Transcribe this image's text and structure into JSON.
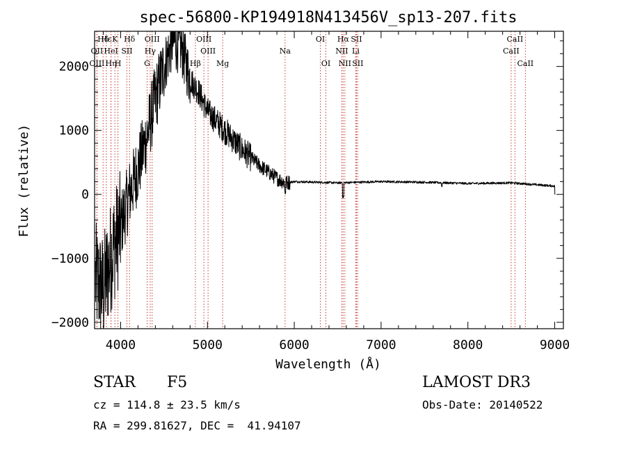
{
  "colors": {
    "line_marker": "#c0392b",
    "spectrum": "#000000",
    "axes": "#000000"
  },
  "chart_data": {
    "type": "line",
    "title": "spec-56800-KP194918N413456V_sp13-207.fits",
    "xlabel": "Wavelength (Å)",
    "ylabel": "Flux (relative)",
    "xlim": [
      3700,
      9100
    ],
    "ylim": [
      -2100,
      2550
    ],
    "xticks": [
      4000,
      5000,
      6000,
      7000,
      8000,
      9000
    ],
    "xtick_labels": [
      "4000",
      "5000",
      "6000",
      "7000",
      "8000",
      "9000"
    ],
    "yticks": [
      -2000,
      -1000,
      0,
      1000,
      2000
    ],
    "ytick_labels": [
      "−2000",
      "−1000",
      "0",
      "1000",
      "2000"
    ],
    "spectrum_envelope": {
      "x": [
        3700,
        3800,
        3900,
        4000,
        4100,
        4200,
        4300,
        4400,
        4500,
        4600,
        4700,
        4800,
        4900,
        5000,
        5200,
        5400,
        5600,
        5800,
        5900,
        6000,
        6500,
        7000,
        7500,
        8000,
        8500,
        9000,
        9010
      ],
      "y": [
        -1300,
        -1500,
        -900,
        -500,
        0,
        400,
        900,
        1500,
        2000,
        2400,
        2300,
        1800,
        1600,
        1300,
        1000,
        700,
        450,
        250,
        180,
        200,
        180,
        200,
        190,
        170,
        180,
        130,
        0
      ]
    },
    "emission_lines": [
      {
        "label": "Hδ",
        "wavelength": 3798,
        "row": 0
      },
      {
        "label": "OII",
        "wavelength": 3727,
        "row": 1
      },
      {
        "label": "OIII",
        "wavelength": 3727,
        "row": 2
      },
      {
        "label": "Hε",
        "wavelength": 3835,
        "row": 0
      },
      {
        "label": "HeI",
        "wavelength": 3889,
        "row": 1
      },
      {
        "label": "Hη",
        "wavelength": 3889,
        "row": 2
      },
      {
        "label": "K",
        "wavelength": 3934,
        "row": 0
      },
      {
        "label": "SII",
        "wavelength": 4072,
        "row": 1
      },
      {
        "label": "H",
        "wavelength": 3969,
        "row": 2
      },
      {
        "label": "Hδ",
        "wavelength": 4102,
        "row": 0
      },
      {
        "label": "OIII",
        "wavelength": 4363,
        "row": 0
      },
      {
        "label": "Hγ",
        "wavelength": 4340,
        "row": 1
      },
      {
        "label": "G",
        "wavelength": 4305,
        "row": 2
      },
      {
        "label": "Hβ",
        "wavelength": 4861,
        "row": 2
      },
      {
        "label": "OIII",
        "wavelength": 4959,
        "row": 0
      },
      {
        "label": "OIII",
        "wavelength": 5007,
        "row": 1
      },
      {
        "label": "Mg",
        "wavelength": 5175,
        "row": 2
      },
      {
        "label": "Na",
        "wavelength": 5894,
        "row": 1
      },
      {
        "label": "OI",
        "wavelength": 6300,
        "row": 0
      },
      {
        "label": "OI",
        "wavelength": 6364,
        "row": 2
      },
      {
        "label": "Hα",
        "wavelength": 6563,
        "row": 0
      },
      {
        "label": "NII",
        "wavelength": 6548,
        "row": 1
      },
      {
        "label": "NII",
        "wavelength": 6583,
        "row": 2
      },
      {
        "label": "SII",
        "wavelength": 6716,
        "row": 0
      },
      {
        "label": "Li",
        "wavelength": 6708,
        "row": 1
      },
      {
        "label": "SII",
        "wavelength": 6731,
        "row": 2
      },
      {
        "label": "CaII",
        "wavelength": 8542,
        "row": 0
      },
      {
        "label": "CaII",
        "wavelength": 8498,
        "row": 1
      },
      {
        "label": "CaII",
        "wavelength": 8662,
        "row": 2
      }
    ]
  },
  "info": {
    "object_class": "STAR",
    "subclass": "F5",
    "survey": "LAMOST DR3",
    "cz": "cz = 114.8 ± 23.5 km/s",
    "obs_date": "Obs-Date: 20140522",
    "coords": "RA = 299.81627, DEC =  41.94107"
  }
}
